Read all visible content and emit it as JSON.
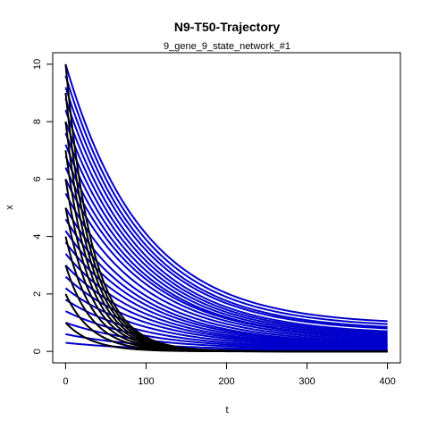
{
  "chart_data": {
    "type": "line",
    "title": "N9-T50-Trajectory",
    "subtitle": "9_gene_9_state_network_#1",
    "xlabel": "t",
    "ylabel": "x",
    "xlim": [
      -16,
      416
    ],
    "ylim": [
      -0.4,
      10.4
    ],
    "xticks": [
      0,
      100,
      200,
      300,
      400
    ],
    "yticks": [
      0,
      2,
      4,
      6,
      8,
      10
    ],
    "grid": false,
    "legend": "none",
    "colors": {
      "fast": "#000000",
      "slow": "#0000cc"
    },
    "series": [
      {
        "group": "slow",
        "x0": 0,
        "x1": 400,
        "y_start": 10.0,
        "y_end": 1.05
      },
      {
        "group": "slow",
        "x0": 0,
        "x1": 400,
        "y_start": 9.6,
        "y_end": 0.95
      },
      {
        "group": "slow",
        "x0": 0,
        "x1": 400,
        "y_start": 9.2,
        "y_end": 0.85
      },
      {
        "group": "slow",
        "x0": 0,
        "x1": 400,
        "y_start": 8.8,
        "y_end": 0.8
      },
      {
        "group": "slow",
        "x0": 0,
        "x1": 400,
        "y_start": 8.4,
        "y_end": 0.7
      },
      {
        "group": "slow",
        "x0": 0,
        "x1": 400,
        "y_start": 8.0,
        "y_end": 0.65
      },
      {
        "group": "slow",
        "x0": 0,
        "x1": 400,
        "y_start": 7.6,
        "y_end": 0.6
      },
      {
        "group": "slow",
        "x0": 0,
        "x1": 400,
        "y_start": 7.2,
        "y_end": 0.55
      },
      {
        "group": "slow",
        "x0": 0,
        "x1": 400,
        "y_start": 6.8,
        "y_end": 0.5
      },
      {
        "group": "slow",
        "x0": 0,
        "x1": 400,
        "y_start": 6.4,
        "y_end": 0.5
      },
      {
        "group": "slow",
        "x0": 0,
        "x1": 400,
        "y_start": 6.0,
        "y_end": 0.45
      },
      {
        "group": "slow",
        "x0": 0,
        "x1": 400,
        "y_start": 5.5,
        "y_end": 0.4
      },
      {
        "group": "slow",
        "x0": 0,
        "x1": 400,
        "y_start": 5.0,
        "y_end": 0.35
      },
      {
        "group": "slow",
        "x0": 0,
        "x1": 400,
        "y_start": 4.6,
        "y_end": 0.3
      },
      {
        "group": "slow",
        "x0": 0,
        "x1": 400,
        "y_start": 4.2,
        "y_end": 0.28
      },
      {
        "group": "slow",
        "x0": 0,
        "x1": 400,
        "y_start": 3.8,
        "y_end": 0.25
      },
      {
        "group": "slow",
        "x0": 0,
        "x1": 400,
        "y_start": 3.4,
        "y_end": 0.22
      },
      {
        "group": "slow",
        "x0": 0,
        "x1": 400,
        "y_start": 3.0,
        "y_end": 0.2
      },
      {
        "group": "slow",
        "x0": 0,
        "x1": 400,
        "y_start": 2.6,
        "y_end": 0.18
      },
      {
        "group": "slow",
        "x0": 0,
        "x1": 400,
        "y_start": 2.2,
        "y_end": 0.15
      },
      {
        "group": "slow",
        "x0": 0,
        "x1": 400,
        "y_start": 1.8,
        "y_end": 0.12
      },
      {
        "group": "slow",
        "x0": 0,
        "x1": 400,
        "y_start": 1.4,
        "y_end": 0.1
      },
      {
        "group": "slow",
        "x0": 0,
        "x1": 400,
        "y_start": 1.0,
        "y_end": 0.08
      },
      {
        "group": "slow",
        "x0": 0,
        "x1": 400,
        "y_start": 0.6,
        "y_end": 0.05
      },
      {
        "group": "slow",
        "x0": 0,
        "x1": 400,
        "y_start": 0.3,
        "y_end": 0.02
      },
      {
        "group": "fast",
        "x0": 0,
        "x1": 400,
        "y_start": 10.0,
        "y_end": 0.0
      },
      {
        "group": "fast",
        "x0": 0,
        "x1": 400,
        "y_start": 9.0,
        "y_end": 0.0
      },
      {
        "group": "fast",
        "x0": 0,
        "x1": 400,
        "y_start": 8.0,
        "y_end": 0.0
      },
      {
        "group": "fast",
        "x0": 0,
        "x1": 400,
        "y_start": 7.0,
        "y_end": 0.0
      },
      {
        "group": "fast",
        "x0": 0,
        "x1": 400,
        "y_start": 6.0,
        "y_end": 0.0
      },
      {
        "group": "fast",
        "x0": 0,
        "x1": 400,
        "y_start": 5.0,
        "y_end": 0.0
      },
      {
        "group": "fast",
        "x0": 0,
        "x1": 400,
        "y_start": 4.0,
        "y_end": 0.0
      },
      {
        "group": "fast",
        "x0": 0,
        "x1": 400,
        "y_start": 3.0,
        "y_end": 0.0
      },
      {
        "group": "fast",
        "x0": 0,
        "x1": 400,
        "y_start": 2.0,
        "y_end": 0.0
      },
      {
        "group": "fast",
        "x0": 0,
        "x1": 400,
        "y_start": 1.0,
        "y_end": 0.0
      }
    ]
  }
}
